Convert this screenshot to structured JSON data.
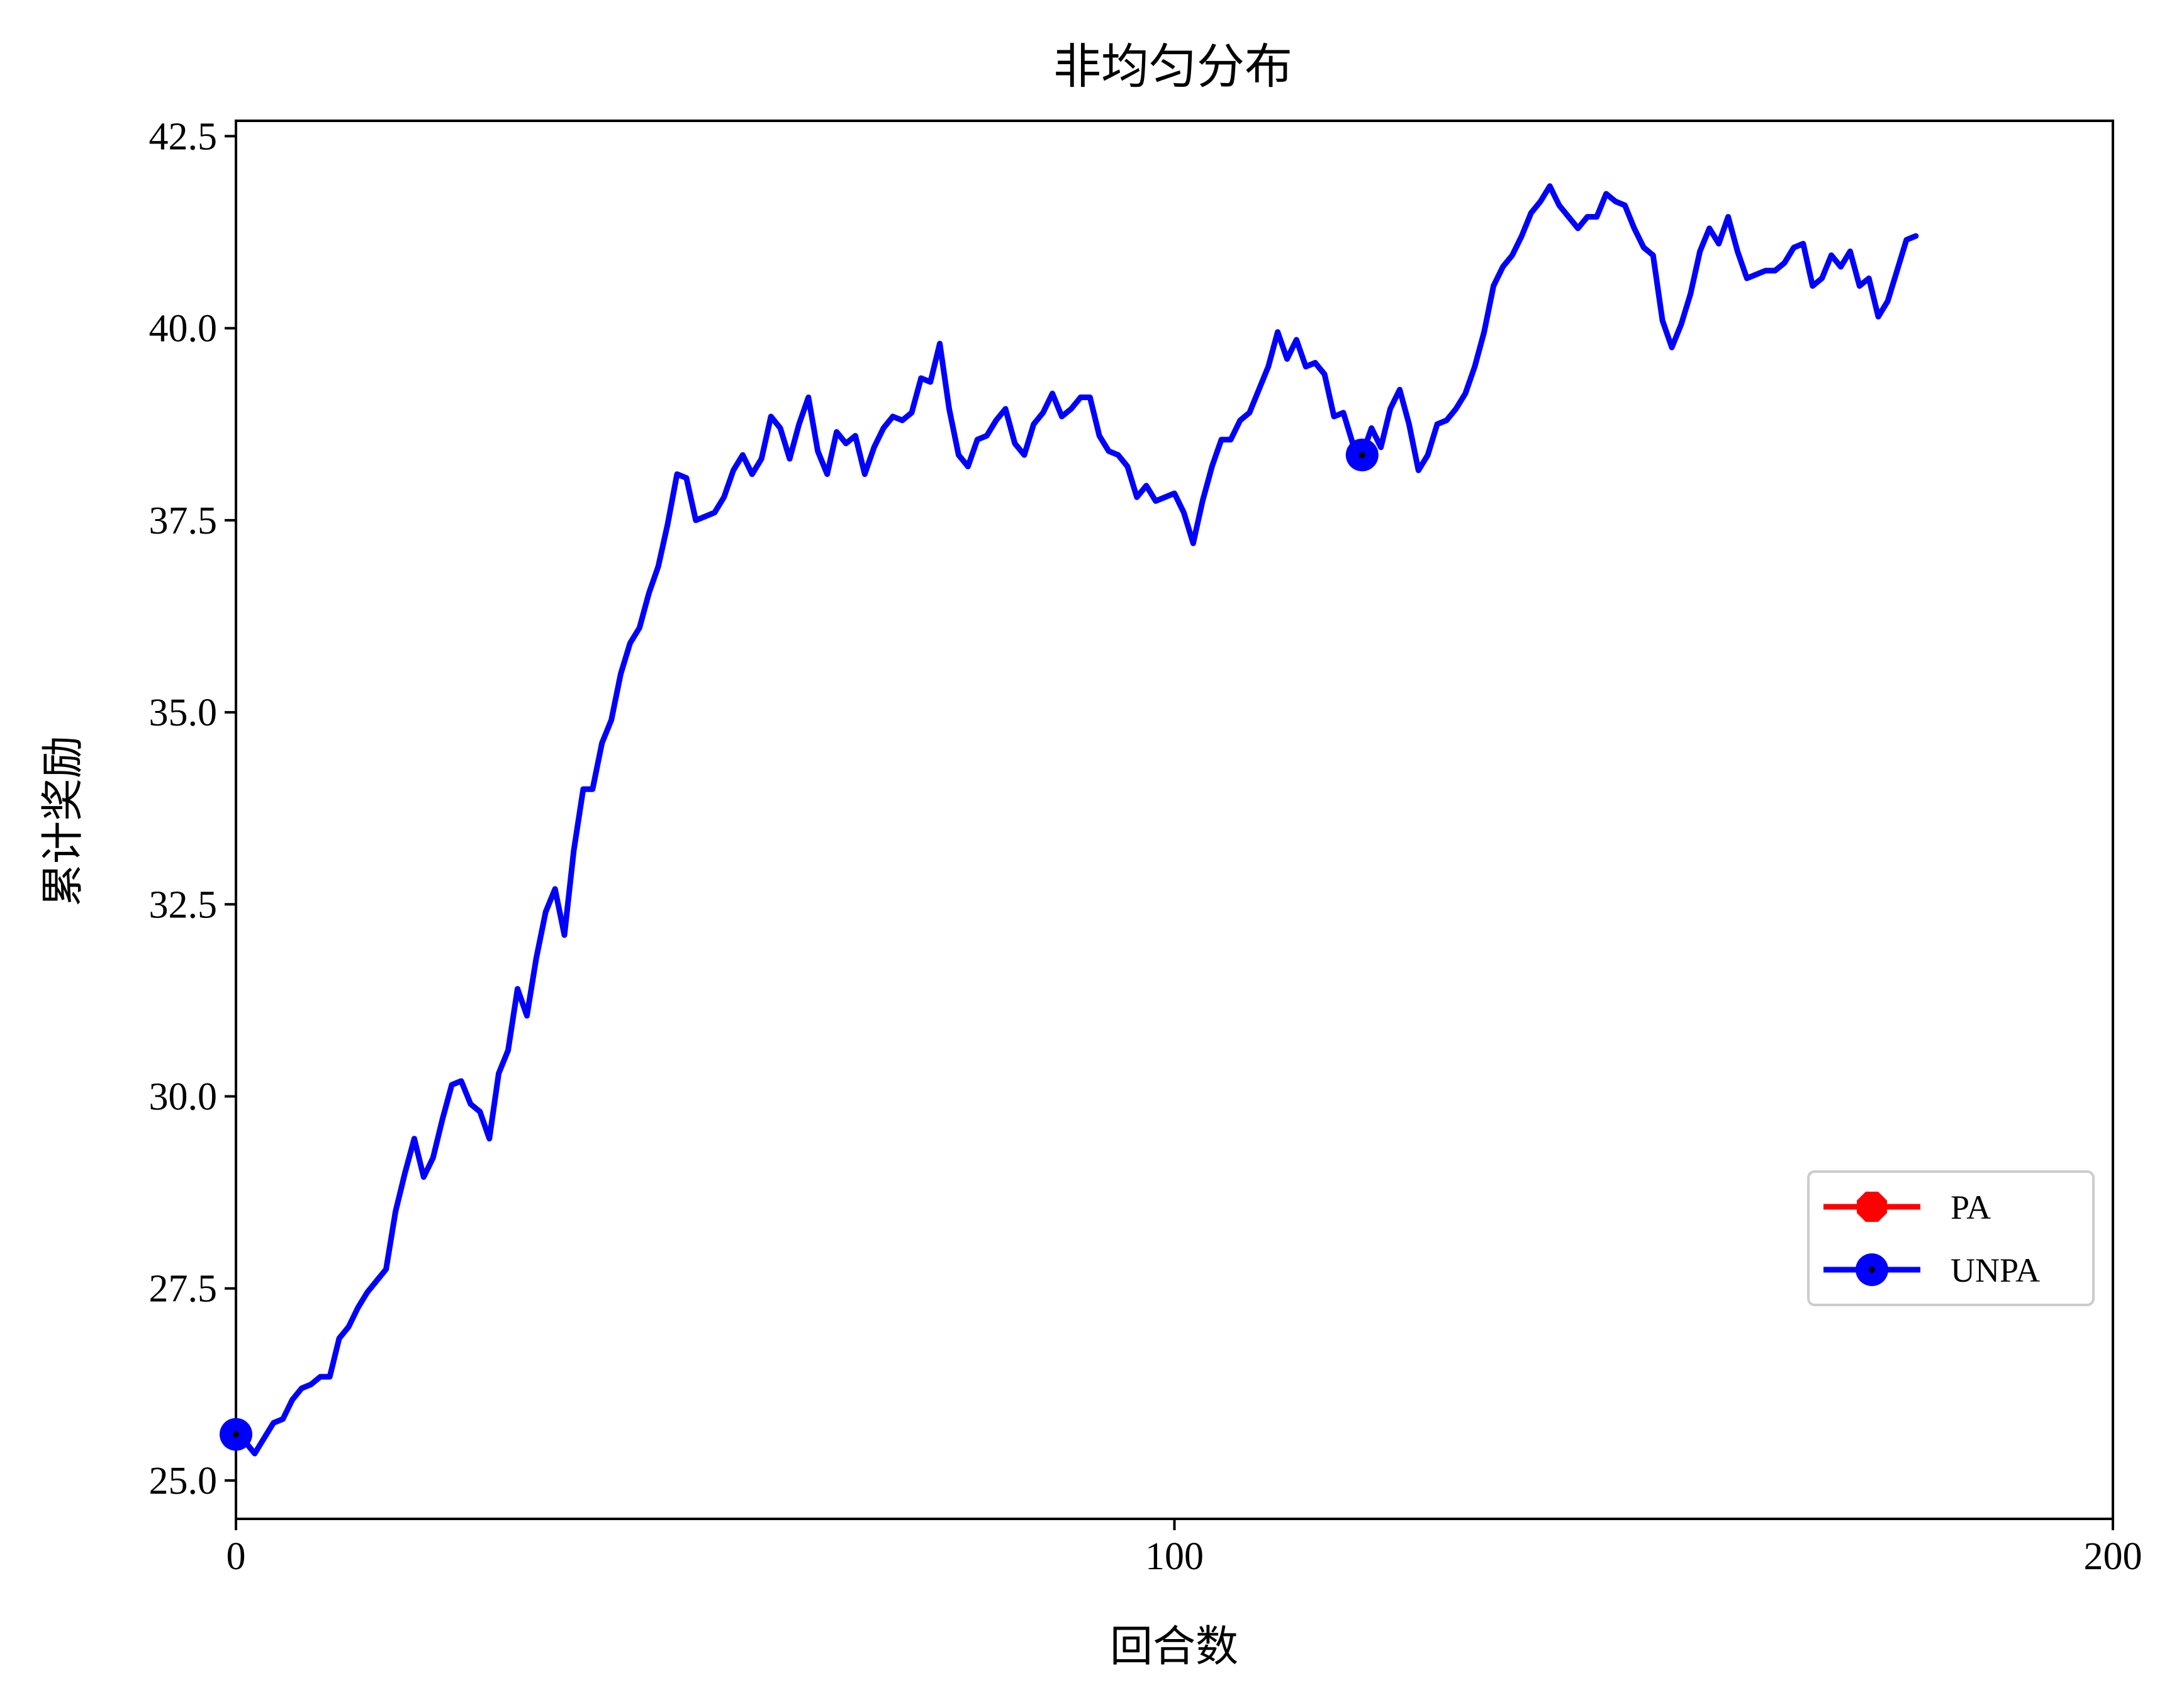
{
  "chart_data": {
    "type": "line",
    "title": "非均匀分布",
    "xlabel": "回合数",
    "ylabel": "累计奖励",
    "xlim": [
      0,
      200
    ],
    "ylim": [
      24.5,
      42.7
    ],
    "xticks": [
      0,
      100,
      200
    ],
    "xtick_labels": [
      "0",
      "100",
      "200"
    ],
    "yticks": [
      25.0,
      27.5,
      30.0,
      32.5,
      35.0,
      37.5,
      40.0,
      42.5
    ],
    "ytick_labels": [
      "25.0",
      "27.5",
      "30.0",
      "32.5",
      "35.0",
      "37.5",
      "40.0",
      "42.5"
    ],
    "grid": false,
    "legend_position": "lower-right",
    "series": [
      {
        "name": "PA",
        "color": "#ff0000",
        "marker": "octagon",
        "x": [],
        "y": []
      },
      {
        "name": "UNPA",
        "color": "#0000ff",
        "marker": "circle",
        "marker_every": 120,
        "x": [
          0,
          1,
          2,
          3,
          4,
          5,
          6,
          7,
          8,
          9,
          10,
          11,
          12,
          13,
          14,
          15,
          16,
          17,
          18,
          19,
          20,
          21,
          22,
          23,
          24,
          25,
          26,
          27,
          28,
          29,
          30,
          31,
          32,
          33,
          34,
          35,
          36,
          37,
          38,
          39,
          40,
          41,
          42,
          43,
          44,
          45,
          46,
          47,
          48,
          49,
          50,
          51,
          52,
          53,
          54,
          55,
          56,
          57,
          58,
          59,
          60,
          61,
          62,
          63,
          64,
          65,
          66,
          67,
          68,
          69,
          70,
          71,
          72,
          73,
          74,
          75,
          76,
          77,
          78,
          79,
          80,
          81,
          82,
          83,
          84,
          85,
          86,
          87,
          88,
          89,
          90,
          91,
          92,
          93,
          94,
          95,
          96,
          97,
          98,
          99,
          100,
          101,
          102,
          103,
          104,
          105,
          106,
          107,
          108,
          109,
          110,
          111,
          112,
          113,
          114,
          115,
          116,
          117,
          118,
          119,
          120,
          121,
          122,
          123,
          124,
          125,
          126,
          127,
          128,
          129,
          130,
          131,
          132,
          133,
          134,
          135,
          136,
          137,
          138,
          139,
          140,
          141,
          142,
          143,
          144,
          145,
          146,
          147,
          148,
          149,
          150,
          151,
          152,
          153,
          154,
          155,
          156,
          157,
          158,
          159,
          160,
          161,
          162,
          163,
          164,
          165,
          166,
          167,
          168,
          169,
          170,
          171,
          172,
          173,
          174,
          175,
          176,
          177,
          178,
          179
        ],
        "y": [
          25.6,
          25.5,
          25.35,
          25.55,
          25.75,
          25.8,
          26.05,
          26.2,
          26.25,
          26.35,
          26.35,
          26.85,
          27.0,
          27.25,
          27.45,
          27.6,
          27.75,
          28.5,
          29.0,
          29.45,
          28.95,
          29.2,
          29.7,
          30.15,
          30.2,
          29.9,
          29.8,
          29.45,
          30.3,
          30.6,
          31.4,
          31.05,
          31.8,
          32.4,
          32.7,
          32.1,
          33.2,
          34.0,
          34.0,
          34.6,
          34.9,
          35.5,
          35.9,
          36.1,
          36.55,
          36.9,
          37.45,
          38.1,
          38.05,
          37.5,
          37.55,
          37.6,
          37.8,
          38.15,
          38.35,
          38.1,
          38.3,
          38.85,
          38.7,
          38.3,
          38.75,
          39.1,
          38.4,
          38.1,
          38.65,
          38.5,
          38.6,
          38.1,
          38.45,
          38.7,
          38.85,
          38.8,
          38.9,
          39.35,
          39.3,
          39.8,
          38.95,
          38.35,
          38.2,
          38.55,
          38.6,
          38.8,
          38.95,
          38.5,
          38.35,
          38.75,
          38.9,
          39.15,
          38.85,
          38.95,
          39.1,
          39.1,
          38.6,
          38.4,
          38.35,
          38.2,
          37.8,
          37.95,
          37.75,
          37.8,
          37.85,
          37.6,
          37.2,
          37.75,
          38.2,
          38.55,
          38.55,
          38.8,
          38.9,
          39.2,
          39.5,
          39.95,
          39.6,
          39.85,
          39.5,
          39.55,
          39.4,
          38.85,
          38.9,
          38.5,
          38.35,
          38.7,
          38.45,
          38.95,
          39.2,
          38.75,
          38.15,
          38.35,
          38.75,
          38.8,
          38.95,
          39.15,
          39.5,
          39.95,
          40.55,
          40.8,
          40.95,
          41.2,
          41.5,
          41.65,
          41.85,
          41.6,
          41.45,
          41.3,
          41.45,
          41.45,
          41.75,
          41.65,
          41.6,
          41.3,
          41.05,
          40.95,
          40.1,
          39.75,
          40.05,
          40.45,
          41.0,
          41.3,
          41.1,
          41.45,
          41.0,
          40.65,
          40.7,
          40.75,
          40.75,
          40.85,
          41.05,
          41.1,
          40.55,
          40.65,
          40.95,
          40.8,
          41.0,
          40.55,
          40.65,
          40.15,
          40.35,
          40.75,
          41.15,
          41.2
        ]
      }
    ]
  }
}
